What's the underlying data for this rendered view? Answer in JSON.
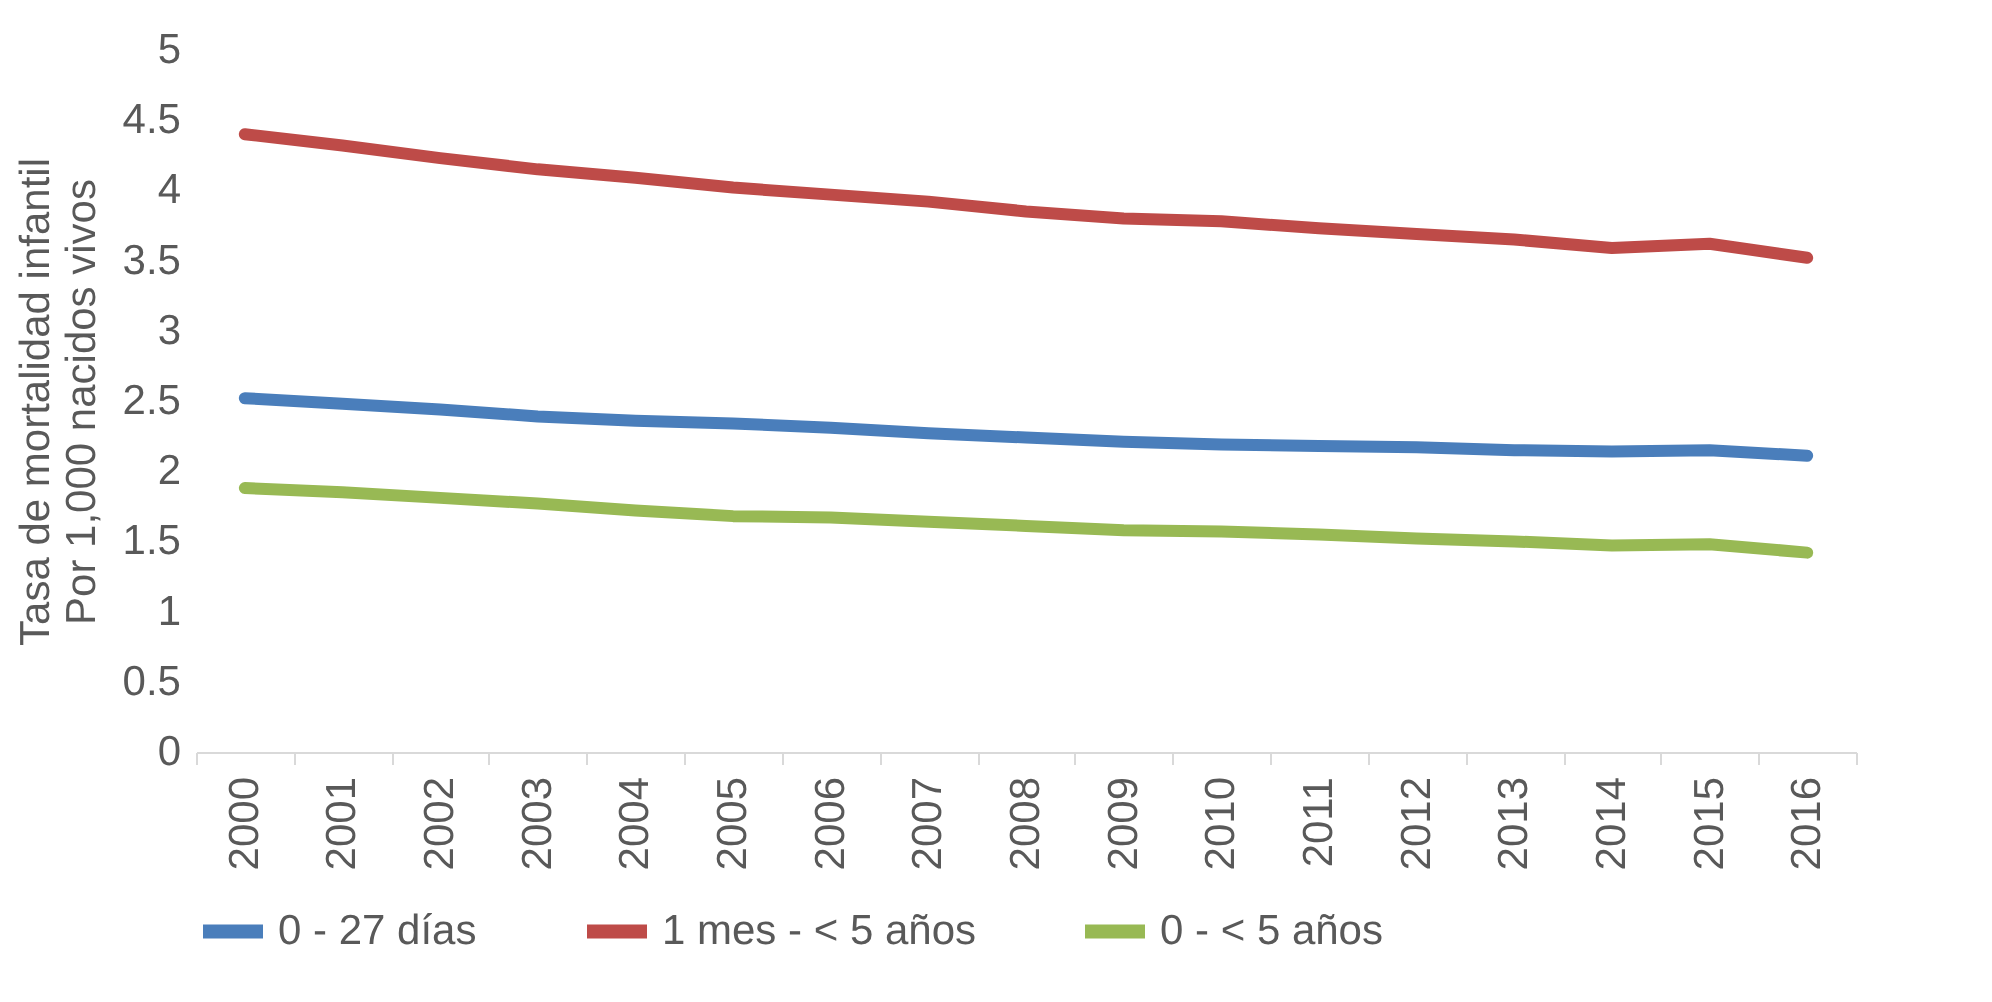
{
  "chart_data": {
    "type": "line",
    "ylabel": "Tasa de mortalidad infantil\nPor 1,000 nacidos vivos",
    "categories": [
      "2000",
      "2001",
      "2002",
      "2003",
      "2004",
      "2005",
      "2006",
      "2007",
      "2008",
      "2009",
      "2010",
      "2011",
      "2012",
      "2013",
      "2014",
      "2015",
      "2016"
    ],
    "ylim": [
      0,
      5
    ],
    "yticks": [
      0,
      0.5,
      1,
      1.5,
      2,
      2.5,
      3,
      3.5,
      4,
      4.5,
      5
    ],
    "grid": false,
    "legend": "bottom",
    "marker": "none",
    "line_style": "solid",
    "series": [
      {
        "name": "0 - 27 días",
        "color": "#4a7ebb",
        "values": [
          2.52,
          2.48,
          2.44,
          2.39,
          2.36,
          2.34,
          2.31,
          2.27,
          2.24,
          2.21,
          2.19,
          2.18,
          2.17,
          2.15,
          2.14,
          2.15,
          2.11
        ]
      },
      {
        "name": "1 mes - < 5 años",
        "color": "#be4b48",
        "values": [
          4.4,
          4.32,
          4.23,
          4.15,
          4.09,
          4.02,
          3.97,
          3.92,
          3.85,
          3.8,
          3.78,
          3.73,
          3.69,
          3.65,
          3.59,
          3.62,
          3.52
        ]
      },
      {
        "name": "0 - < 5 años",
        "color": "#98b954",
        "values": [
          1.88,
          1.85,
          1.81,
          1.77,
          1.72,
          1.68,
          1.67,
          1.64,
          1.61,
          1.58,
          1.57,
          1.55,
          1.52,
          1.5,
          1.47,
          1.48,
          1.42
        ]
      }
    ]
  }
}
